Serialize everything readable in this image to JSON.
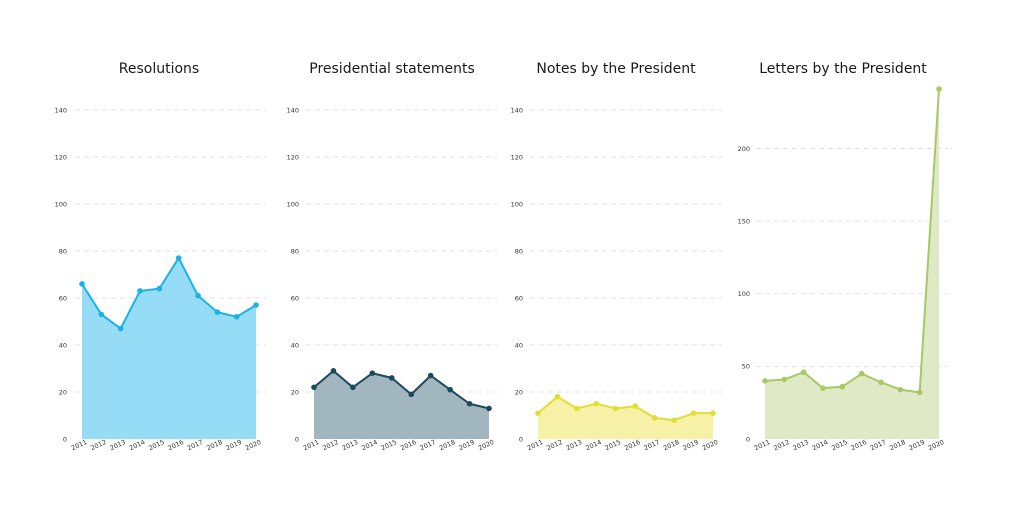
{
  "chart_data": [
    {
      "type": "area",
      "title": "Resolutions",
      "categories": [
        "2011",
        "2012",
        "2013",
        "2014",
        "2015",
        "2016",
        "2017",
        "2018",
        "2019",
        "2020"
      ],
      "values": [
        66,
        53,
        47,
        63,
        64,
        77,
        61,
        54,
        52,
        57
      ],
      "yticks": [
        0,
        20,
        40,
        60,
        80,
        100,
        120,
        140
      ],
      "ylim": [
        0,
        140
      ],
      "grid": true,
      "line_color": "#1ab3e6",
      "fill_color": "#97dcf6"
    },
    {
      "type": "area",
      "title": "Presidential statements",
      "categories": [
        "2011",
        "2012",
        "2013",
        "2014",
        "2015",
        "2016",
        "2017",
        "2018",
        "2019",
        "2020"
      ],
      "values": [
        22,
        29,
        22,
        28,
        26,
        19,
        27,
        21,
        15,
        13
      ],
      "yticks": [
        0,
        20,
        40,
        60,
        80,
        100,
        120,
        140
      ],
      "ylim": [
        0,
        140
      ],
      "grid": true,
      "line_color": "#1b4a5e",
      "fill_color": "#a2b6bf"
    },
    {
      "type": "area",
      "title": "Notes by the President",
      "categories": [
        "2011",
        "2012",
        "2013",
        "2014",
        "2015",
        "2016",
        "2017",
        "2018",
        "2019",
        "2020"
      ],
      "values": [
        11,
        18,
        13,
        15,
        13,
        14,
        9,
        8,
        11,
        11
      ],
      "yticks": [
        0,
        20,
        40,
        60,
        80,
        100,
        120,
        140
      ],
      "ylim": [
        0,
        140
      ],
      "grid": true,
      "line_color": "#e1de36",
      "fill_color": "#f6f1a6"
    },
    {
      "type": "area",
      "title": "Letters by the President",
      "categories": [
        "2011",
        "2012",
        "2013",
        "2014",
        "2015",
        "2016",
        "2017",
        "2018",
        "2019",
        "2020"
      ],
      "values": [
        40,
        41,
        46,
        35,
        36,
        45,
        39,
        34,
        32,
        241
      ],
      "yticks": [
        0,
        50,
        100,
        150,
        200
      ],
      "ylim": [
        0,
        241
      ],
      "grid": true,
      "line_color": "#a6c965",
      "fill_color": "#dfe9c6"
    }
  ]
}
